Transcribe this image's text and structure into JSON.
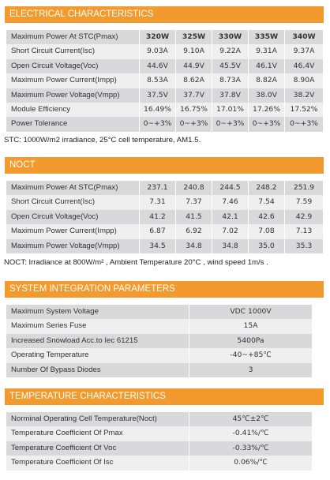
{
  "sections": [
    {
      "title": "ELECTRICAL CHARACTERISTICS",
      "rows": [
        [
          "Maximum Power At STC(Pmax)",
          "320W",
          "325W",
          "330W",
          "335W",
          "340W"
        ],
        [
          "Short Circuit Current(Isc)",
          "9.03A",
          "9.10A",
          "9.22A",
          "9.31A",
          "9.37A"
        ],
        [
          "Open Circuit Voltage(Voc)",
          "44.6V",
          "44.9V",
          "45.5V",
          "46.1V",
          "46.4V"
        ],
        [
          "Maximum Power Current(Impp)",
          "8.53A",
          "8.62A",
          "8.73A",
          "8.82A",
          "8.90A"
        ],
        [
          "Maximum Power Voltage(Vmpp)",
          "37.5V",
          "37.7V",
          "37.8V",
          "38.0V",
          "38.2V"
        ],
        [
          "Module Efficiency",
          "16.49%",
          "16.75%",
          "17.01%",
          "17.26%",
          "17.52%"
        ],
        [
          "Power Tolerance",
          "0~+3%",
          "0~+3%",
          "0~+3%",
          "0~+3%",
          "0~+3%"
        ]
      ],
      "note": "STC: 1000W/m2 irradiance, 25°C cell temperature, AM1.5."
    },
    {
      "title": "NOCT",
      "rows": [
        [
          "Maximum Power At STC(Pmax)",
          "237.1",
          "240.8",
          "244.5",
          "248.2",
          "251.9"
        ],
        [
          "Short Circuit Current(Isc)",
          "7.31",
          "7.37",
          "7.46",
          "7.54",
          "7.59"
        ],
        [
          "Open Circuit Voltage(Voc)",
          "41.2",
          "41.5",
          "42.1",
          "42.6",
          "42.9"
        ],
        [
          "Maximum Power Current(Impp)",
          "6.87",
          "6.92",
          "7.02",
          "7.08",
          "7.13"
        ],
        [
          "Maximum Power Voltage(Vmpp)",
          "34.5",
          "34.8",
          "34.8",
          "35.0",
          "35.3"
        ]
      ],
      "note": "NOCT: Irradiance at 800W/m² , Ambient Temperature 20°C  , wind speed 1m/s ."
    },
    {
      "title": "SYSTEM INTEGRATION PARAMETERS",
      "rows": [
        [
          "Maximum System Voltage",
          "VDC 1000V"
        ],
        [
          "Maximum Series Fuse",
          "15A"
        ],
        [
          "Increased Snowload Acc.to Iec 61215",
          "5400Pa"
        ],
        [
          "Operating Temperature",
          "-40~+85℃"
        ],
        [
          "Number Of Bypass Diodes",
          "3"
        ]
      ]
    },
    {
      "title": "TEMPERATURE CHARACTERISTICS",
      "rows": [
        [
          "Norminal Operating Cell Temperature(Noct)",
          "45℃±2℃"
        ],
        [
          "Temperature Coefficient Of Pmax",
          "-0.41%/℃"
        ],
        [
          "Temperature Coefficient Of Voc",
          "-0.33%/℃"
        ],
        [
          "Temperature Coefficient Of Isc",
          "0.06%/℃"
        ]
      ]
    }
  ]
}
